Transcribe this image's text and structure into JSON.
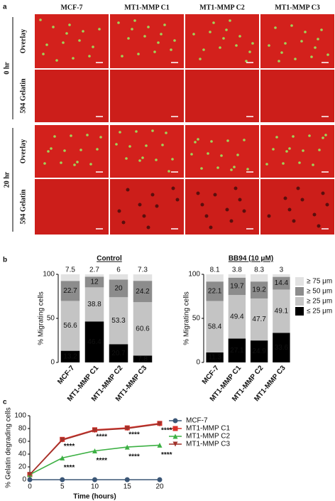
{
  "panel_a": {
    "label": "a",
    "columns": [
      "MCF-7",
      "MT1-MMP C1",
      "MT1-MMP C2",
      "MT1-MMP C3"
    ],
    "rows": [
      {
        "time": "0 hr",
        "channels": [
          "Overlay",
          "594 Gelatin"
        ]
      },
      {
        "time": "20 hr",
        "channels": [
          "Overlay",
          "594 Gelatin"
        ]
      }
    ]
  },
  "chart_data": [
    {
      "type": "stacked_bar",
      "panel_label": "b",
      "title": "Control",
      "y_label": "% Migrating cells",
      "categories": [
        "MCF-7",
        "MT1-MMP C1",
        "MT1-MMP C2",
        "MT1-MMP C3"
      ],
      "ylim": [
        0,
        100
      ],
      "yticks": [
        0,
        50,
        100
      ],
      "series": [
        {
          "color": "#000000",
          "values": [
            13.2,
            46.4,
            20.7,
            7.8
          ]
        },
        {
          "color": "#c4c4c4",
          "values": [
            56.6,
            38.8,
            53.3,
            60.6
          ]
        },
        {
          "color": "#8c8c8c",
          "values": [
            22.7,
            12.0,
            20.0,
            24.2
          ]
        },
        {
          "color": "#e2e2e2",
          "values": [
            7.5,
            2.7,
            6.0,
            7.3
          ]
        }
      ]
    },
    {
      "type": "stacked_bar",
      "title": "BB94 (10 μM)",
      "y_label": "% Migrating cells",
      "categories": [
        "MCF-7",
        "MT1-MMP C1",
        "MT1-MMP C2",
        "MT1-MMP C3"
      ],
      "ylim": [
        0,
        100
      ],
      "yticks": [
        0,
        50,
        100
      ],
      "legend": "right",
      "series": [
        {
          "name": "≤ 25 μm",
          "color": "#000000",
          "values": [
            11.3,
            27.1,
            24.9,
            33.6
          ]
        },
        {
          "name": "≥ 25 μm",
          "color": "#c4c4c4",
          "values": [
            58.4,
            49.4,
            47.7,
            49.1
          ]
        },
        {
          "name": "≥ 50 μm",
          "color": "#8c8c8c",
          "values": [
            22.1,
            19.7,
            19.2,
            14.4
          ]
        },
        {
          "name": "≥ 75 μm",
          "color": "#e2e2e2",
          "values": [
            8.1,
            3.8,
            8.3,
            3.0
          ]
        }
      ]
    },
    {
      "type": "line",
      "panel_label": "c",
      "x_label": "Time (hours)",
      "y_label": "% Gelatin degrading cells",
      "x": [
        0,
        5,
        10,
        15,
        20
      ],
      "xlim": [
        0,
        20
      ],
      "xticks": [
        0,
        5,
        10,
        15,
        20
      ],
      "ylim": [
        0,
        100
      ],
      "yticks": [
        0,
        20,
        40,
        60,
        80,
        100
      ],
      "legend": "right",
      "series": [
        {
          "name": "MCF-7",
          "color": "#3b5676",
          "marker": "circle",
          "values": [
            0,
            0,
            0,
            0,
            0
          ]
        },
        {
          "name": "MT1-MMP C1",
          "color": "#d9302a",
          "marker": "square",
          "values": [
            8,
            63,
            78,
            81,
            88
          ]
        },
        {
          "name": "MT1-MMP C2",
          "color": "#3cb043",
          "marker": "triangle",
          "values": [
            8,
            34,
            45,
            51,
            54
          ]
        },
        {
          "name": "MT1-MMP C3",
          "color": "#a0322a",
          "marker": "triangle-down",
          "values": [
            8,
            62,
            77,
            80,
            87
          ]
        }
      ],
      "annotations": [
        "****",
        "****",
        "****",
        "****",
        "****",
        "****",
        "****",
        "****"
      ]
    }
  ]
}
